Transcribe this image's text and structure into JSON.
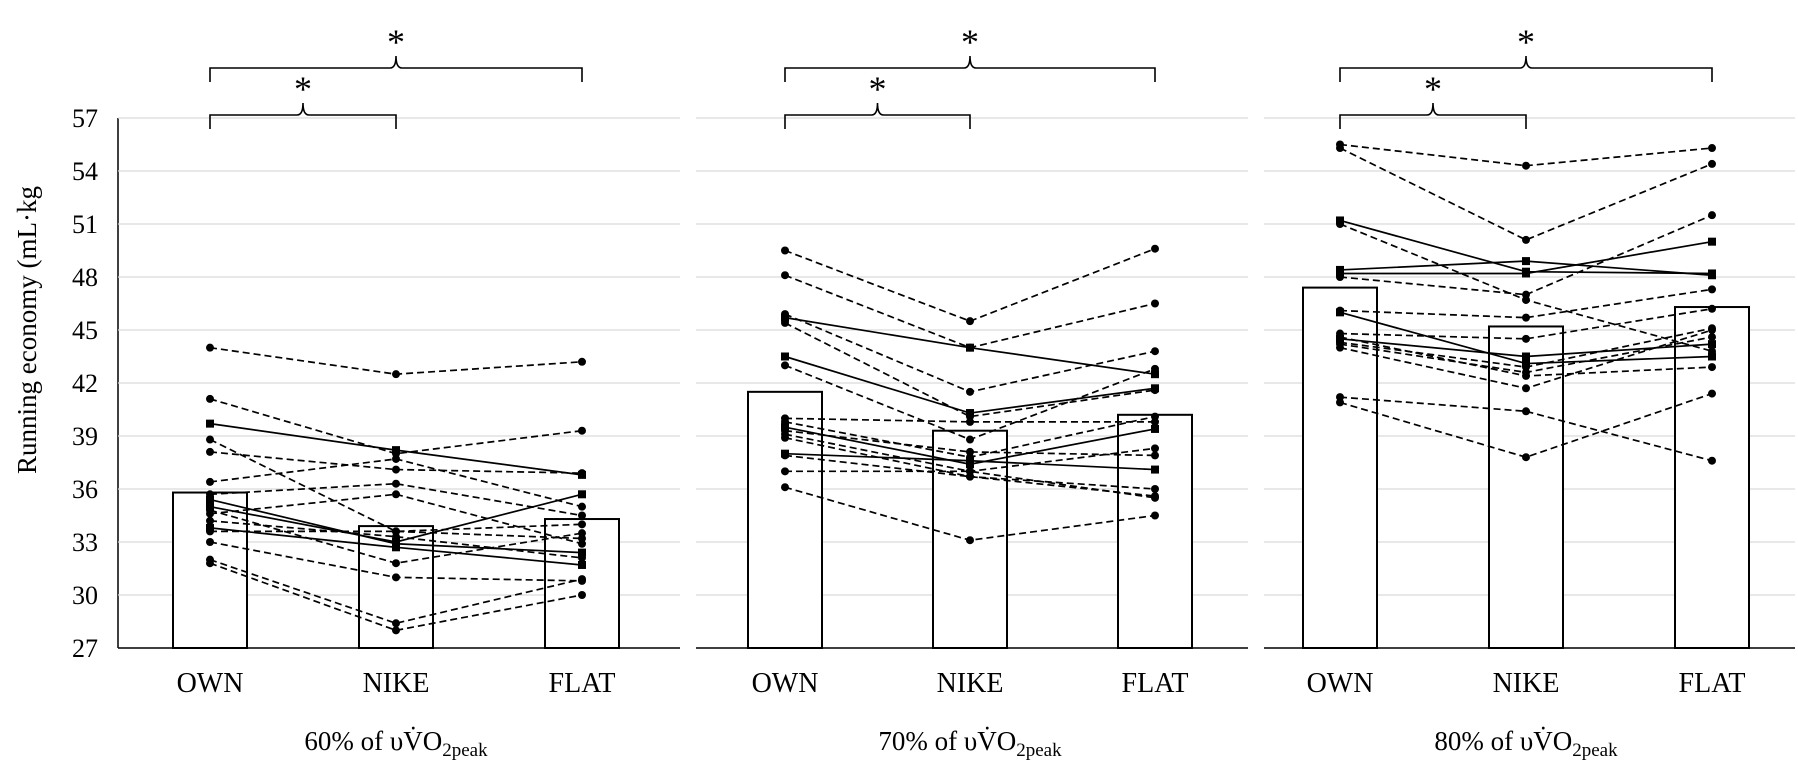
{
  "y_axis": {
    "label": "Running economy (mL·kg",
    "ticks": [
      "57",
      "54",
      "51",
      "48",
      "45",
      "42",
      "39",
      "36",
      "33",
      "30",
      "27"
    ]
  },
  "significance_symbol": "*",
  "chart_data": [
    {
      "type": "bar",
      "panel_label": {
        "prefix": "60% of ",
        "symbol": "υV̇O",
        "subscript": "2peak"
      },
      "categories": [
        "OWN",
        "NIKE",
        "FLAT"
      ],
      "values": [
        35.8,
        33.9,
        34.3
      ],
      "ylim": [
        27,
        57
      ],
      "grid": true,
      "significance": [
        {
          "from": "OWN",
          "to": "NIKE",
          "label": "*"
        },
        {
          "from": "OWN",
          "to": "FLAT",
          "label": "*"
        }
      ],
      "participants": [
        {
          "style": "dashed",
          "values": [
            44.0,
            42.5,
            43.2
          ]
        },
        {
          "style": "dashed",
          "values": [
            41.1,
            38.0,
            39.3
          ]
        },
        {
          "style": "solid",
          "values": [
            39.7,
            38.2,
            36.8
          ]
        },
        {
          "style": "dashed",
          "values": [
            38.8,
            33.6,
            34.0
          ]
        },
        {
          "style": "dashed",
          "values": [
            38.1,
            37.1,
            36.9
          ]
        },
        {
          "style": "dashed",
          "values": [
            36.4,
            37.7,
            35.0
          ]
        },
        {
          "style": "dashed",
          "values": [
            35.7,
            36.3,
            34.5
          ]
        },
        {
          "style": "solid",
          "values": [
            35.4,
            32.9,
            32.4
          ]
        },
        {
          "style": "solid",
          "values": [
            35.0,
            33.0,
            35.7
          ]
        },
        {
          "style": "dashed",
          "values": [
            34.6,
            35.7,
            32.9
          ]
        },
        {
          "style": "dashed",
          "values": [
            34.2,
            33.3,
            32.1
          ]
        },
        {
          "style": "solid",
          "values": [
            33.8,
            32.7,
            31.7
          ]
        },
        {
          "style": "dashed",
          "values": [
            33.6,
            33.6,
            33.2
          ]
        },
        {
          "style": "dashed",
          "values": [
            33.0,
            31.0,
            30.8
          ]
        },
        {
          "style": "dashed",
          "values": [
            32.0,
            28.4,
            30.9
          ]
        },
        {
          "style": "dashed",
          "values": [
            31.8,
            28.0,
            30.0
          ]
        },
        {
          "style": "dashed",
          "values": [
            34.8,
            31.8,
            33.5
          ]
        }
      ]
    },
    {
      "type": "bar",
      "panel_label": {
        "prefix": "70% of ",
        "symbol": "υV̇O",
        "subscript": "2peak"
      },
      "categories": [
        "OWN",
        "NIKE",
        "FLAT"
      ],
      "values": [
        41.5,
        39.3,
        40.2
      ],
      "ylim": [
        27,
        57
      ],
      "grid": true,
      "significance": [
        {
          "from": "OWN",
          "to": "NIKE",
          "label": "*"
        },
        {
          "from": "OWN",
          "to": "FLAT",
          "label": "*"
        }
      ],
      "participants": [
        {
          "style": "dashed",
          "values": [
            49.5,
            45.5,
            49.6
          ]
        },
        {
          "style": "dashed",
          "values": [
            48.1,
            44.0,
            46.5
          ]
        },
        {
          "style": "dashed",
          "values": [
            45.9,
            41.5,
            43.8
          ]
        },
        {
          "style": "solid",
          "values": [
            45.7,
            44.0,
            42.5
          ]
        },
        {
          "style": "dashed",
          "values": [
            45.4,
            40.1,
            41.6
          ]
        },
        {
          "style": "solid",
          "values": [
            43.5,
            40.3,
            41.7
          ]
        },
        {
          "style": "dashed",
          "values": [
            43.0,
            38.8,
            42.8
          ]
        },
        {
          "style": "dashed",
          "values": [
            40.0,
            39.8,
            39.8
          ]
        },
        {
          "style": "dashed",
          "values": [
            39.8,
            37.8,
            40.1
          ]
        },
        {
          "style": "solid",
          "values": [
            39.5,
            37.4,
            39.4
          ]
        },
        {
          "style": "dashed",
          "values": [
            39.1,
            37.0,
            38.3
          ]
        },
        {
          "style": "solid",
          "values": [
            38.0,
            37.6,
            37.1
          ]
        },
        {
          "style": "dashed",
          "values": [
            37.9,
            36.7,
            35.6
          ]
        },
        {
          "style": "dashed",
          "values": [
            37.0,
            37.0,
            35.5
          ]
        },
        {
          "style": "dashed",
          "values": [
            36.1,
            33.1,
            34.5
          ]
        },
        {
          "style": "dashed",
          "values": [
            39.3,
            38.1,
            37.9
          ]
        },
        {
          "style": "dashed",
          "values": [
            38.9,
            36.7,
            36.0
          ]
        }
      ]
    },
    {
      "type": "bar",
      "panel_label": {
        "prefix": "80% of ",
        "symbol": "υV̇O",
        "subscript": "2peak"
      },
      "categories": [
        "OWN",
        "NIKE",
        "FLAT"
      ],
      "values": [
        47.4,
        45.2,
        46.3
      ],
      "ylim": [
        27,
        57
      ],
      "grid": true,
      "significance": [
        {
          "from": "OWN",
          "to": "NIKE",
          "label": "*"
        },
        {
          "from": "OWN",
          "to": "FLAT",
          "label": "*"
        }
      ],
      "participants": [
        {
          "style": "dashed",
          "values": [
            55.5,
            54.3,
            55.3
          ]
        },
        {
          "style": "dashed",
          "values": [
            55.3,
            50.1,
            54.4
          ]
        },
        {
          "style": "solid",
          "values": [
            51.2,
            48.3,
            48.2
          ]
        },
        {
          "style": "dashed",
          "values": [
            51.0,
            46.7,
            43.8
          ]
        },
        {
          "style": "solid",
          "values": [
            48.4,
            48.9,
            48.1
          ]
        },
        {
          "style": "solid",
          "values": [
            48.2,
            48.2,
            50.0
          ]
        },
        {
          "style": "dashed",
          "values": [
            48.0,
            47.0,
            51.5
          ]
        },
        {
          "style": "dashed",
          "values": [
            46.1,
            45.7,
            47.3
          ]
        },
        {
          "style": "solid",
          "values": [
            46.0,
            43.1,
            43.5
          ]
        },
        {
          "style": "dashed",
          "values": [
            44.8,
            44.5,
            46.2
          ]
        },
        {
          "style": "solid",
          "values": [
            44.5,
            43.5,
            44.2
          ]
        },
        {
          "style": "dashed",
          "values": [
            44.3,
            42.9,
            45.1
          ]
        },
        {
          "style": "dashed",
          "values": [
            44.2,
            42.6,
            44.6
          ]
        },
        {
          "style": "dashed",
          "values": [
            44.0,
            41.7,
            45.0
          ]
        },
        {
          "style": "dashed",
          "values": [
            41.2,
            40.4,
            37.6
          ]
        },
        {
          "style": "dashed",
          "values": [
            40.9,
            37.8,
            41.4
          ]
        },
        {
          "style": "dashed",
          "values": [
            44.6,
            42.4,
            42.9
          ]
        }
      ]
    }
  ]
}
